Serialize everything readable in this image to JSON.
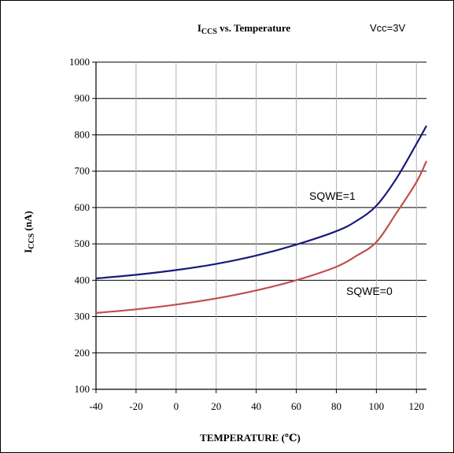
{
  "chart_data": {
    "type": "line",
    "title_main": "I",
    "title_sub": "CCS",
    "title_rest": " vs. Temperature",
    "condition": "Vcc=3V",
    "ylabel_main": "I",
    "ylabel_sub": "CCS",
    "ylabel_rest": " (nA)",
    "xlabel": "TEMPERATURE (℃)",
    "xlim": [
      -40,
      125
    ],
    "ylim": [
      100,
      1000
    ],
    "x_ticks": [
      -40,
      -20,
      0,
      20,
      40,
      60,
      80,
      100,
      120
    ],
    "y_ticks": [
      100,
      200,
      300,
      400,
      500,
      600,
      700,
      800,
      900,
      1000
    ],
    "grid": true,
    "series": [
      {
        "name": "SQWE=1",
        "color": "#1a1a7a",
        "x": [
          -40,
          -20,
          0,
          20,
          40,
          60,
          80,
          90,
          100,
          110,
          120,
          125
        ],
        "y": [
          405,
          415,
          428,
          445,
          468,
          498,
          535,
          563,
          605,
          680,
          775,
          825
        ]
      },
      {
        "name": "SQWE=0",
        "color": "#c0504d",
        "x": [
          -40,
          -20,
          0,
          20,
          40,
          60,
          80,
          90,
          100,
          110,
          120,
          125
        ],
        "y": [
          310,
          320,
          333,
          350,
          372,
          400,
          437,
          467,
          505,
          585,
          670,
          728
        ]
      }
    ]
  }
}
